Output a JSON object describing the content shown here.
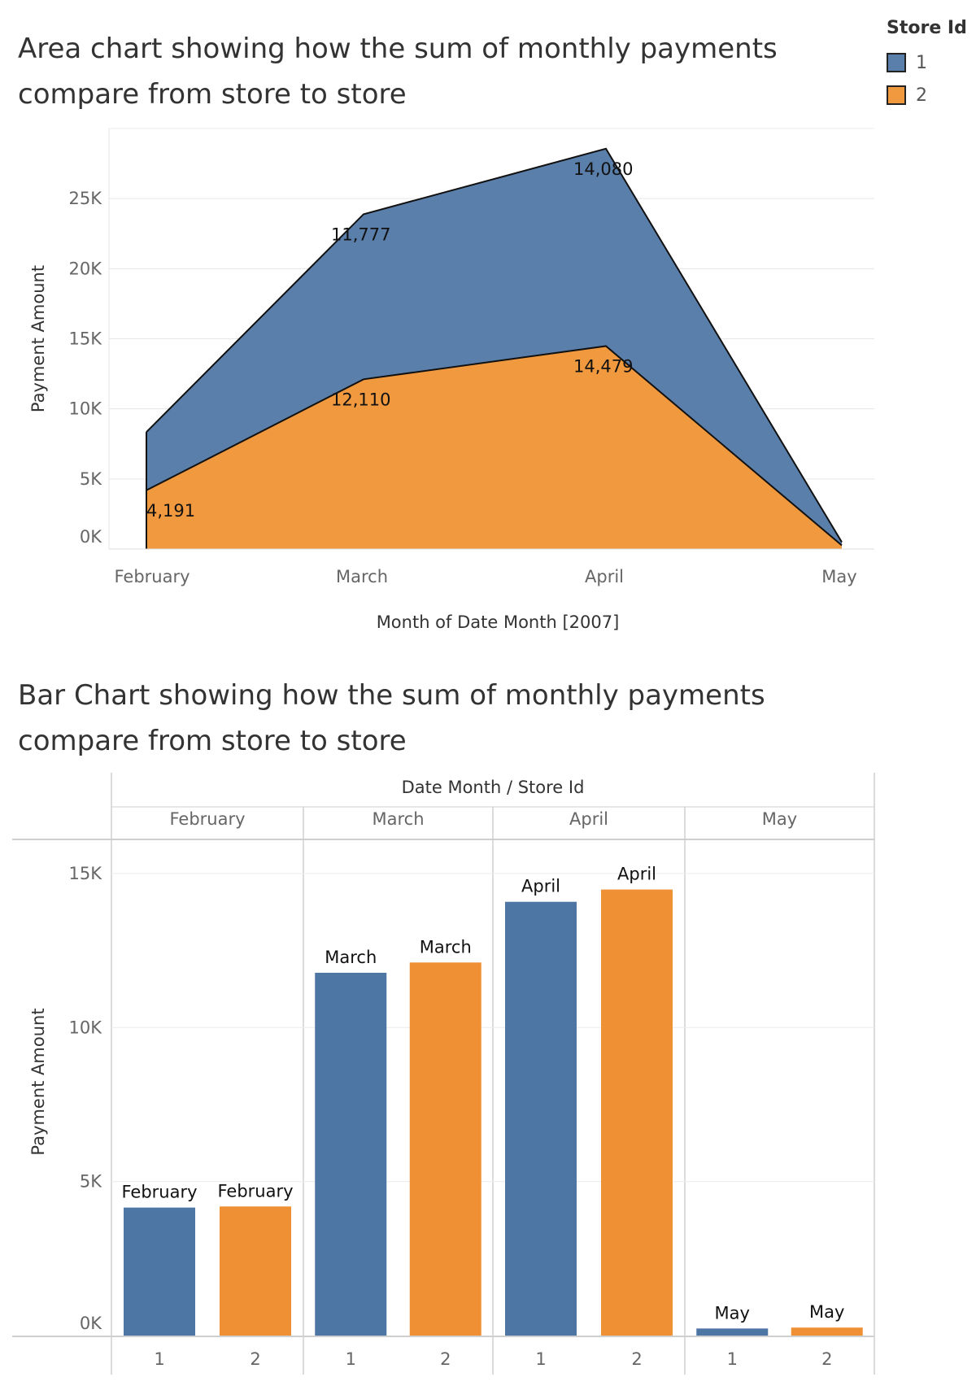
{
  "legend": {
    "title": "Store Id",
    "items": [
      {
        "label": "1",
        "color": "#5b7fab"
      },
      {
        "label": "2",
        "color": "#f0993f"
      }
    ]
  },
  "chart_data": [
    {
      "type": "area",
      "title": "Area chart showing how the sum of monthly payments compare from store to store",
      "xlabel": "Month of Date Month [2007]",
      "ylabel": "Payment Amount",
      "stacked": true,
      "categories": [
        "February",
        "March",
        "April",
        "May"
      ],
      "ylim": [
        0,
        30000
      ],
      "yticks": [
        0,
        5000,
        10000,
        15000,
        20000,
        25000
      ],
      "ytick_labels": [
        "0K",
        "5K",
        "10K",
        "15K",
        "20K",
        "25K"
      ],
      "series": [
        {
          "name": "2",
          "values": [
            4191,
            12110,
            14479,
            260
          ],
          "labels": [
            "4,191",
            "12,110",
            "14,479",
            ""
          ],
          "color": "#f0993f"
        },
        {
          "name": "1",
          "values": [
            4155,
            11777,
            14080,
            230
          ],
          "labels": [
            "",
            "11,777",
            "14,080",
            ""
          ],
          "color": "#5b7fab"
        }
      ],
      "grid": true
    },
    {
      "type": "bar",
      "title": "Bar Chart showing how the sum of monthly payments compare from store to store",
      "header": "Date Month / Store Id",
      "ylabel": "Payment Amount",
      "groups": [
        "February",
        "March",
        "April",
        "May"
      ],
      "subcategories": [
        "1",
        "2"
      ],
      "ylim": [
        0,
        16000
      ],
      "yticks": [
        0,
        5000,
        10000,
        15000
      ],
      "ytick_labels": [
        "0K",
        "5K",
        "10K",
        "15K"
      ],
      "series": [
        {
          "name": "1",
          "values": [
            4155,
            11777,
            14080,
            230
          ],
          "color": "#4e76a5"
        },
        {
          "name": "2",
          "values": [
            4191,
            12110,
            14479,
            260
          ],
          "color": "#ef9035"
        }
      ],
      "bar_labels": [
        "February",
        "March",
        "April",
        "May"
      ],
      "grid": true
    }
  ]
}
